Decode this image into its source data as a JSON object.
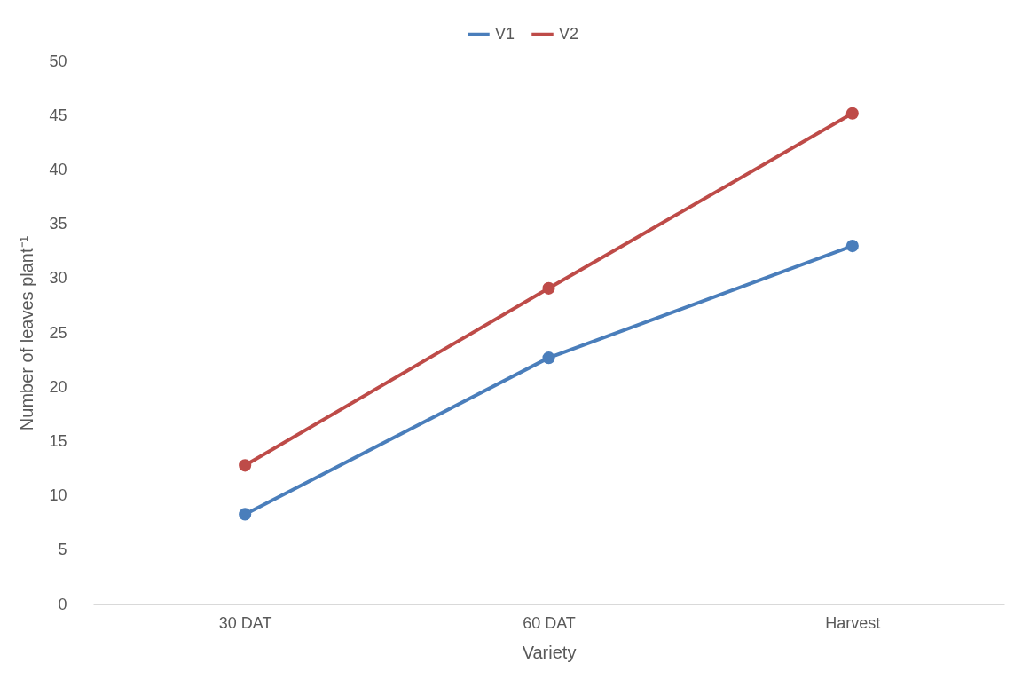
{
  "chart_data": {
    "type": "line",
    "xlabel": "Variety",
    "ylabel": "Number of leaves plant⁻¹",
    "categories": [
      "30 DAT",
      "60 DAT",
      "Harvest"
    ],
    "series": [
      {
        "name": "V1",
        "color": "#4a7ebb",
        "values": [
          8.3,
          22.7,
          33.0
        ]
      },
      {
        "name": "V2",
        "color": "#be4b48",
        "values": [
          12.8,
          29.1,
          45.2
        ]
      }
    ],
    "ylim": [
      0,
      50
    ],
    "yticks": [
      0,
      5,
      10,
      15,
      20,
      25,
      30,
      35,
      40,
      45,
      50
    ],
    "grid": false,
    "legend": "top",
    "marker": "circle",
    "line_style": "solid"
  }
}
